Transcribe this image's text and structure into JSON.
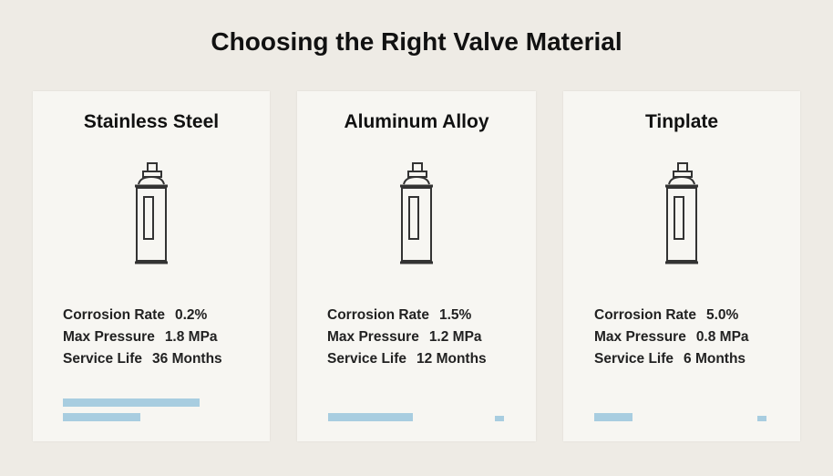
{
  "title": "Choosing the Right Valve Material",
  "cards": [
    {
      "name": "Stainless Steel",
      "rows": [
        {
          "label": "Corrosion Rate",
          "value": "0.2%"
        },
        {
          "label": "Max Pressure",
          "value": "1.8 MPa"
        },
        {
          "label": "Service Life",
          "value": "36 Months"
        }
      ]
    },
    {
      "name": "Aluminum Alloy",
      "rows": [
        {
          "label": "Corrosion Rate",
          "value": "1.5%"
        },
        {
          "label": "Max Pressure",
          "value": "1.2 MPa"
        },
        {
          "label": "Service Life",
          "value": "12 Months"
        }
      ]
    },
    {
      "name": "Tinplate",
      "rows": [
        {
          "label": "Corrosion Rate",
          "value": "5.0%"
        },
        {
          "label": "Max Pressure",
          "value": "0.8 MPa"
        },
        {
          "label": "Service Life",
          "value": "6 Months"
        }
      ]
    }
  ]
}
